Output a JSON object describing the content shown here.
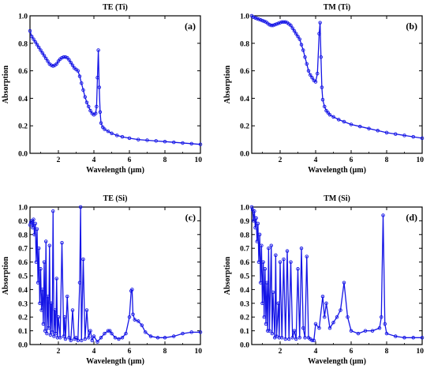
{
  "chart_data": [
    {
      "type": "line",
      "title": "TE (Ti)",
      "panel_label": "(a)",
      "xlabel": "Wavelength (µm)",
      "ylabel": "Absorption",
      "xlim": [
        0.4,
        10
      ],
      "ylim": [
        0,
        1.0
      ],
      "xticks": [
        "2",
        "4",
        "6",
        "8",
        "10"
      ],
      "yticks": [
        "0.0",
        "0.2",
        "0.4",
        "0.6",
        "0.8",
        "1.0"
      ],
      "color": "#1515e6",
      "series": [
        {
          "x": [
            0.4,
            0.5,
            0.6,
            0.7,
            0.8,
            0.9,
            1.0,
            1.1,
            1.2,
            1.3,
            1.4,
            1.5,
            1.6,
            1.7,
            1.8,
            1.9,
            2.0,
            2.1,
            2.2,
            2.3,
            2.4,
            2.5,
            2.6,
            2.7,
            2.8,
            2.9,
            3.0,
            3.1,
            3.2,
            3.3,
            3.4,
            3.5,
            3.6,
            3.7,
            3.8,
            3.9,
            4.0,
            4.1,
            4.15,
            4.2,
            4.25,
            4.3,
            4.35,
            4.4,
            4.5,
            4.6,
            4.8,
            5.0,
            5.3,
            5.6,
            6.0,
            6.5,
            7.0,
            7.5,
            8.0,
            8.5,
            9.0,
            9.5,
            10.0
          ],
          "y": [
            0.89,
            0.85,
            0.83,
            0.81,
            0.79,
            0.77,
            0.75,
            0.73,
            0.71,
            0.69,
            0.67,
            0.65,
            0.64,
            0.635,
            0.64,
            0.65,
            0.67,
            0.685,
            0.695,
            0.7,
            0.7,
            0.695,
            0.68,
            0.66,
            0.64,
            0.62,
            0.61,
            0.6,
            0.56,
            0.51,
            0.46,
            0.41,
            0.37,
            0.34,
            0.31,
            0.29,
            0.28,
            0.29,
            0.34,
            0.55,
            0.75,
            0.48,
            0.3,
            0.22,
            0.19,
            0.175,
            0.16,
            0.145,
            0.13,
            0.12,
            0.11,
            0.1,
            0.095,
            0.09,
            0.085,
            0.08,
            0.075,
            0.07,
            0.065
          ]
        }
      ]
    },
    {
      "type": "line",
      "title": "TM (Ti)",
      "panel_label": "(b)",
      "xlabel": "Wavelength (µm)",
      "ylabel": "Absorption",
      "xlim": [
        0.4,
        10
      ],
      "ylim": [
        0,
        1.0
      ],
      "xticks": [
        "2",
        "4",
        "6",
        "8",
        "10"
      ],
      "yticks": [
        "0.0",
        "0.2",
        "0.4",
        "0.6",
        "0.8",
        "1.0"
      ],
      "color": "#1515e6",
      "series": [
        {
          "x": [
            0.4,
            0.5,
            0.6,
            0.7,
            0.8,
            0.9,
            1.0,
            1.1,
            1.2,
            1.3,
            1.4,
            1.5,
            1.6,
            1.7,
            1.8,
            1.9,
            2.0,
            2.1,
            2.2,
            2.3,
            2.4,
            2.5,
            2.6,
            2.7,
            2.8,
            2.9,
            3.0,
            3.1,
            3.2,
            3.3,
            3.4,
            3.5,
            3.6,
            3.7,
            3.8,
            3.9,
            4.0,
            4.1,
            4.2,
            4.25,
            4.3,
            4.35,
            4.4,
            4.5,
            4.6,
            4.7,
            4.8,
            5.0,
            5.3,
            5.6,
            6.0,
            6.5,
            7.0,
            7.5,
            8.0,
            8.5,
            9.0,
            9.5,
            10.0
          ],
          "y": [
            1.0,
            0.99,
            0.985,
            0.98,
            0.975,
            0.97,
            0.965,
            0.96,
            0.955,
            0.945,
            0.935,
            0.93,
            0.93,
            0.935,
            0.94,
            0.945,
            0.95,
            0.955,
            0.955,
            0.955,
            0.95,
            0.94,
            0.93,
            0.91,
            0.89,
            0.87,
            0.85,
            0.83,
            0.79,
            0.75,
            0.7,
            0.65,
            0.6,
            0.57,
            0.55,
            0.53,
            0.52,
            0.58,
            0.87,
            0.95,
            0.7,
            0.48,
            0.39,
            0.34,
            0.31,
            0.295,
            0.28,
            0.265,
            0.245,
            0.23,
            0.21,
            0.195,
            0.18,
            0.165,
            0.15,
            0.14,
            0.13,
            0.12,
            0.11
          ]
        }
      ]
    },
    {
      "type": "line",
      "title": "TE (Si)",
      "panel_label": "(c)",
      "xlabel": "Wavelength (µm)",
      "ylabel": "Absorption",
      "xlim": [
        0.4,
        10
      ],
      "ylim": [
        0,
        1.0
      ],
      "xticks": [
        "2",
        "4",
        "6",
        "8",
        "10"
      ],
      "yticks": [
        "0.0",
        "0.1",
        "0.2",
        "0.3",
        "0.4",
        "0.5",
        "0.6",
        "0.7",
        "0.8",
        "0.9",
        "1.0"
      ],
      "color": "#1515e6",
      "series": [
        {
          "x": [
            0.4,
            0.45,
            0.5,
            0.55,
            0.6,
            0.65,
            0.7,
            0.75,
            0.8,
            0.85,
            0.9,
            0.95,
            1.0,
            1.05,
            1.1,
            1.15,
            1.2,
            1.25,
            1.3,
            1.35,
            1.4,
            1.45,
            1.5,
            1.55,
            1.6,
            1.65,
            1.7,
            1.75,
            1.8,
            1.85,
            1.9,
            1.95,
            2.0,
            2.1,
            2.2,
            2.3,
            2.35,
            2.4,
            2.5,
            2.6,
            2.7,
            2.8,
            2.9,
            3.0,
            3.1,
            3.2,
            3.25,
            3.3,
            3.4,
            3.5,
            3.6,
            3.7,
            3.8,
            3.9,
            4.0,
            4.2,
            4.4,
            4.6,
            4.8,
            4.9,
            5.0,
            5.2,
            5.4,
            5.6,
            5.8,
            6.0,
            6.1,
            6.15,
            6.2,
            6.3,
            6.5,
            6.7,
            6.9,
            7.2,
            7.6,
            8.0,
            8.5,
            9.0,
            9.5,
            10.0
          ],
          "y": [
            0.87,
            0.89,
            0.9,
            0.85,
            0.91,
            0.8,
            0.88,
            0.6,
            0.84,
            0.45,
            0.7,
            0.3,
            0.55,
            0.25,
            0.4,
            0.15,
            0.6,
            0.1,
            0.75,
            0.08,
            0.35,
            0.12,
            0.72,
            0.07,
            0.3,
            0.09,
            0.97,
            0.06,
            0.25,
            0.08,
            0.48,
            0.05,
            0.2,
            0.05,
            0.74,
            0.06,
            0.2,
            0.04,
            0.35,
            0.05,
            0.03,
            0.25,
            0.04,
            0.05,
            0.03,
            0.45,
            1.0,
            0.03,
            0.62,
            0.04,
            0.25,
            0.05,
            0.1,
            0.03,
            0.06,
            0.02,
            0.05,
            0.08,
            0.1,
            0.1,
            0.08,
            0.05,
            0.04,
            0.05,
            0.08,
            0.2,
            0.39,
            0.4,
            0.22,
            0.18,
            0.17,
            0.14,
            0.09,
            0.06,
            0.05,
            0.05,
            0.06,
            0.08,
            0.09,
            0.09
          ]
        }
      ]
    },
    {
      "type": "line",
      "title": "TM (Si)",
      "panel_label": "(d)",
      "xlabel": "Wavelength (µm)",
      "ylabel": "Absorption",
      "xlim": [
        0.4,
        10
      ],
      "ylim": [
        0,
        1.0
      ],
      "xticks": [
        "2",
        "4",
        "6",
        "8",
        "10"
      ],
      "yticks": [
        "0.0",
        "0.1",
        "0.2",
        "0.3",
        "0.4",
        "0.5",
        "0.6",
        "0.7",
        "0.8",
        "0.9",
        "1.0"
      ],
      "color": "#1515e6",
      "series": [
        {
          "x": [
            0.4,
            0.45,
            0.5,
            0.55,
            0.6,
            0.65,
            0.7,
            0.75,
            0.8,
            0.85,
            0.9,
            0.95,
            1.0,
            1.05,
            1.1,
            1.15,
            1.2,
            1.25,
            1.3,
            1.35,
            1.4,
            1.5,
            1.55,
            1.6,
            1.7,
            1.75,
            1.8,
            1.9,
            1.95,
            2.0,
            2.1,
            2.2,
            2.3,
            2.4,
            2.5,
            2.6,
            2.7,
            2.8,
            2.9,
            3.0,
            3.1,
            3.2,
            3.3,
            3.4,
            3.5,
            3.6,
            3.7,
            3.8,
            3.9,
            4.0,
            4.2,
            4.4,
            4.5,
            4.6,
            4.8,
            5.0,
            5.2,
            5.4,
            5.6,
            5.8,
            6.0,
            6.4,
            6.8,
            7.2,
            7.6,
            7.7,
            7.8,
            7.9,
            8.0,
            8.5,
            9.0,
            9.5,
            10.0
          ],
          "y": [
            1.0,
            0.98,
            0.9,
            0.97,
            0.85,
            0.92,
            0.75,
            0.88,
            0.6,
            0.8,
            0.45,
            0.72,
            0.3,
            0.6,
            0.2,
            0.55,
            0.15,
            0.45,
            0.1,
            0.7,
            0.1,
            0.72,
            0.08,
            0.38,
            0.05,
            0.65,
            0.06,
            0.3,
            0.05,
            0.6,
            0.05,
            0.62,
            0.04,
            0.68,
            0.04,
            0.6,
            0.05,
            0.1,
            0.04,
            0.55,
            0.05,
            0.7,
            0.12,
            0.05,
            0.64,
            0.05,
            0.04,
            0.03,
            0.03,
            0.15,
            0.12,
            0.35,
            0.2,
            0.3,
            0.12,
            0.16,
            0.2,
            0.25,
            0.45,
            0.2,
            0.1,
            0.08,
            0.1,
            0.1,
            0.12,
            0.2,
            0.94,
            0.15,
            0.08,
            0.06,
            0.05,
            0.05,
            0.05
          ]
        }
      ]
    }
  ]
}
